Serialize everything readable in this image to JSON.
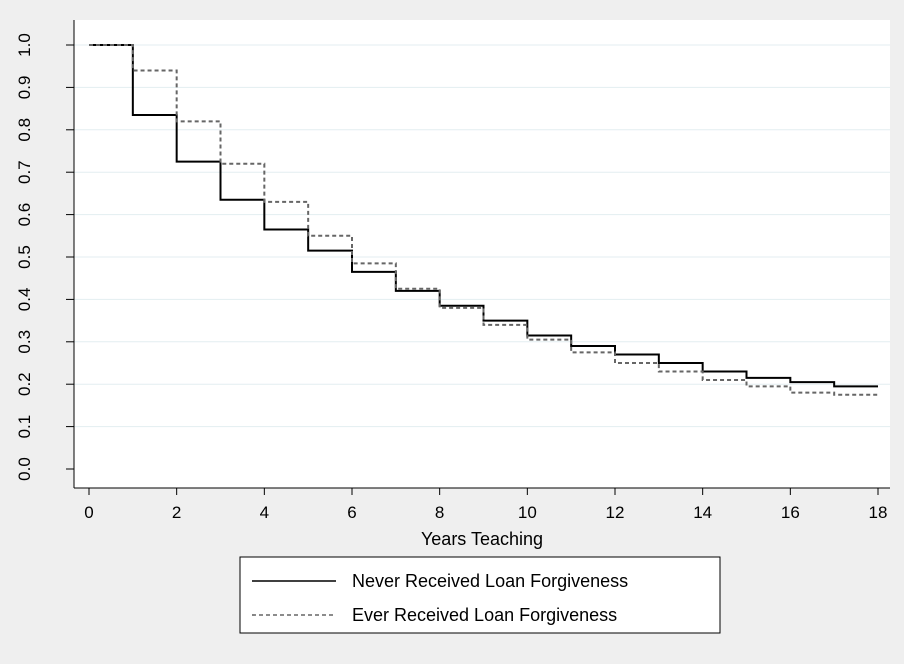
{
  "chart_data": {
    "type": "line",
    "step": true,
    "xlabel": "Years Teaching",
    "ylabel": "",
    "xlim": [
      0,
      18
    ],
    "ylim": [
      0,
      1
    ],
    "xticks": [
      "0",
      "2",
      "4",
      "6",
      "8",
      "10",
      "12",
      "14",
      "16",
      "18"
    ],
    "yticks": [
      "0.0",
      "0.1",
      "0.2",
      "0.3",
      "0.4",
      "0.5",
      "0.6",
      "0.7",
      "0.8",
      "0.9",
      "1.0"
    ],
    "grid": true,
    "legend_position": "bottom",
    "x": [
      0,
      1,
      2,
      3,
      4,
      5,
      6,
      7,
      8,
      9,
      10,
      11,
      12,
      13,
      14,
      15,
      16,
      17,
      18
    ],
    "series": [
      {
        "name": "Never Received Loan Forgiveness",
        "style": "solid",
        "color": "#000000",
        "values": [
          1.0,
          0.835,
          0.725,
          0.635,
          0.565,
          0.515,
          0.465,
          0.42,
          0.385,
          0.35,
          0.315,
          0.29,
          0.27,
          0.25,
          0.23,
          0.215,
          0.205,
          0.195,
          0.195
        ]
      },
      {
        "name": "Ever Received Loan Forgiveness",
        "style": "dashed",
        "color": "#666666",
        "values": [
          1.0,
          0.94,
          0.82,
          0.72,
          0.63,
          0.55,
          0.485,
          0.425,
          0.38,
          0.34,
          0.305,
          0.275,
          0.25,
          0.23,
          0.21,
          0.195,
          0.18,
          0.175,
          0.175
        ]
      }
    ]
  }
}
